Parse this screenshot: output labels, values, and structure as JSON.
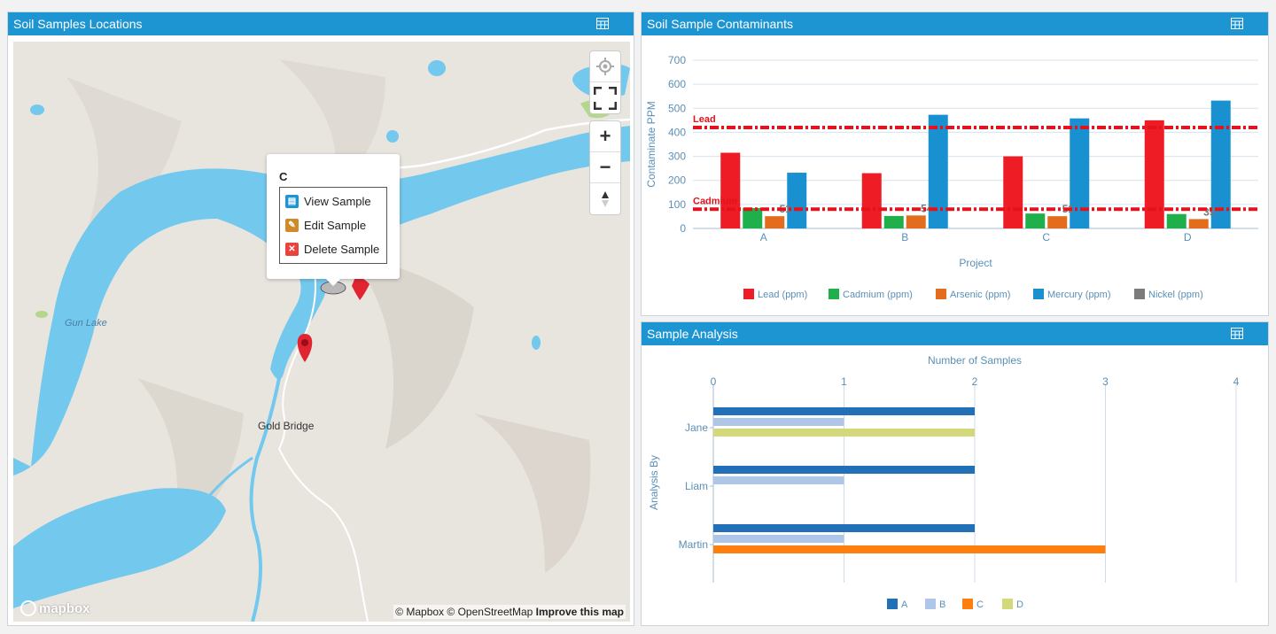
{
  "map_panel": {
    "title": "Soil Samples Locations",
    "labels": {
      "lake": "Gun Lake",
      "town": "Gold Bridge"
    },
    "popup": {
      "title": "C",
      "items": [
        "View Sample",
        "Edit Sample",
        "Delete Sample"
      ]
    },
    "controls": [
      "locate-icon",
      "fullscreen-icon",
      "zoom-in-icon",
      "zoom-out-icon",
      "compass-icon"
    ],
    "attribution": {
      "mapbox": "© Mapbox",
      "osm": "© OpenStreetMap",
      "improve": "Improve this map"
    },
    "logo": "mapbox",
    "colors": {
      "water": "#73c8ee",
      "land": "#e9e6e1",
      "marker": "#e02432"
    }
  },
  "contaminants_panel": {
    "title": "Soil Sample Contaminants",
    "chart_data": {
      "type": "bar",
      "categories": [
        "A",
        "B",
        "C",
        "D"
      ],
      "series": [
        {
          "name": "Lead (ppm)",
          "color": "#ee1c25",
          "values": [
            315,
            230,
            300,
            450
          ]
        },
        {
          "name": "Cadmium (ppm)",
          "color": "#1fb04b",
          "values": [
            85,
            52,
            62,
            60
          ]
        },
        {
          "name": "Arsenic (ppm)",
          "color": "#e36c1d",
          "values": [
            51,
            54,
            51,
            39
          ]
        },
        {
          "name": "Mercury (ppm)",
          "color": "#1991d1",
          "values": [
            232,
            473,
            458,
            532
          ]
        },
        {
          "name": "Nickel (ppm)",
          "color": "#7c7c7c",
          "values": [
            0,
            0,
            0,
            0
          ]
        }
      ],
      "bar_labels": [
        "51",
        "54",
        "51",
        "39"
      ],
      "xlabel": "Project",
      "ylabel": "Contaminate PPM",
      "ylim": [
        0,
        700
      ],
      "yticks": [
        0,
        100,
        200,
        300,
        400,
        500,
        600,
        700
      ],
      "thresholds": [
        {
          "label": "Lead",
          "value": 420,
          "color": "#e5121c"
        },
        {
          "label": "Cadmium",
          "value": 80,
          "color": "#e5121c"
        }
      ],
      "legend_position": "bottom",
      "grid": true
    }
  },
  "analysis_panel": {
    "title": "Sample Analysis",
    "chart_data": {
      "type": "bar",
      "orientation": "horizontal",
      "categories": [
        "Jane",
        "Liam",
        "Martin"
      ],
      "series": [
        {
          "name": "A",
          "color": "#2270b8",
          "values": [
            2,
            2,
            2
          ]
        },
        {
          "name": "B",
          "color": "#aec7e8",
          "values": [
            1,
            1,
            1
          ]
        },
        {
          "name": "C",
          "color": "#ff7f0e",
          "values": [
            0,
            0,
            3
          ]
        },
        {
          "name": "D",
          "color": "#d3d97a",
          "values": [
            2,
            0,
            0
          ]
        }
      ],
      "xlabel": "Number of Samples",
      "ylabel": "Analysis By",
      "xlim": [
        0,
        4
      ],
      "xticks": [
        0,
        1,
        2,
        3,
        4
      ],
      "legend_position": "bottom",
      "grid": true
    }
  }
}
